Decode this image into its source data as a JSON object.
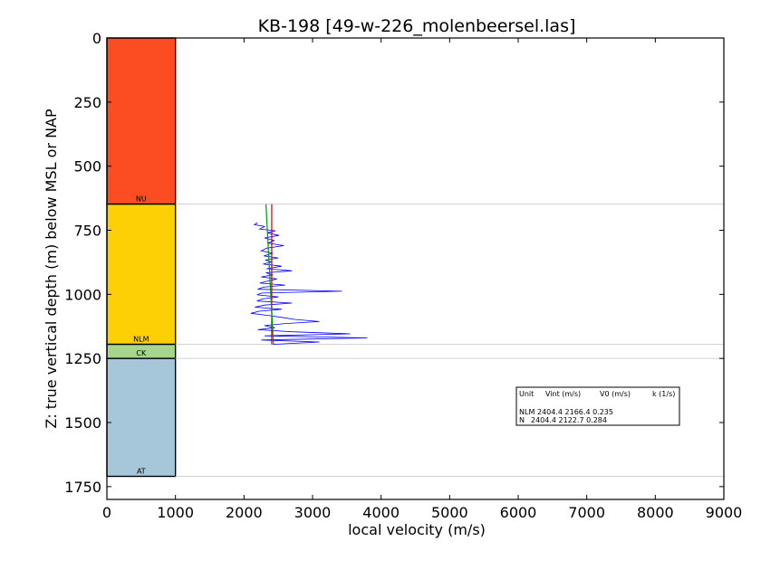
{
  "chart_data": {
    "type": "line",
    "title": "KB-198 [49-w-226_molenbeersel.las]",
    "xlabel": "local velocity (m/s)",
    "ylabel": "Z: true vertical depth (m) below MSL or NAP",
    "xlim": [
      0,
      9000
    ],
    "ylim": [
      1800,
      0
    ],
    "x_ticks": [
      0,
      1000,
      2000,
      3000,
      4000,
      5000,
      6000,
      7000,
      8000,
      9000
    ],
    "y_ticks": [
      0,
      250,
      500,
      750,
      1000,
      1250,
      1500,
      1750
    ],
    "x_tick_labels": [
      "0",
      "1000",
      "2000",
      "3000",
      "4000",
      "5000",
      "6000",
      "7000",
      "8000",
      "9000"
    ],
    "y_tick_labels": [
      "0",
      "250",
      "500",
      "750",
      "1000",
      "1250",
      "1500",
      "1750"
    ],
    "units": [
      {
        "name": "NU",
        "top": 0,
        "base": 648,
        "color": "#fc4c22"
      },
      {
        "name": "NLM",
        "top": 648,
        "base": 1195,
        "color": "#fcd004"
      },
      {
        "name": "CK",
        "top": 1195,
        "base": 1250,
        "color": "#a6d68e"
      },
      {
        "name": "AT",
        "top": 1250,
        "base": 1710,
        "color": "#a6c7da"
      }
    ],
    "unit_column_x": [
      0,
      1000
    ],
    "boundaries": [
      648,
      1195,
      1250,
      1710
    ],
    "fit_lines": [
      {
        "color": "#cc0000",
        "x": [
          2404.4,
          2404.4
        ],
        "y": [
          648,
          1195
        ]
      },
      {
        "color": "#009900",
        "x": [
          2320,
          2430
        ],
        "y": [
          648,
          1195
        ]
      }
    ],
    "series": [
      {
        "color": "#0000ff",
        "points": [
          [
            2200,
            720
          ],
          [
            2150,
            728
          ],
          [
            2300,
            735
          ],
          [
            2230,
            745
          ],
          [
            2460,
            752
          ],
          [
            2340,
            760
          ],
          [
            2510,
            770
          ],
          [
            2300,
            780
          ],
          [
            2440,
            790
          ],
          [
            2350,
            800
          ],
          [
            2580,
            810
          ],
          [
            2330,
            820
          ],
          [
            2250,
            830
          ],
          [
            2420,
            840
          ],
          [
            2290,
            850
          ],
          [
            2500,
            858
          ],
          [
            2310,
            866
          ],
          [
            2400,
            874
          ],
          [
            2280,
            882
          ],
          [
            2550,
            890
          ],
          [
            2330,
            900
          ],
          [
            2700,
            908
          ],
          [
            2320,
            916
          ],
          [
            2420,
            924
          ],
          [
            2250,
            932
          ],
          [
            2480,
            940
          ],
          [
            2350,
            948
          ],
          [
            2230,
            956
          ],
          [
            2600,
            964
          ],
          [
            2280,
            972
          ],
          [
            2200,
            980
          ],
          [
            3430,
            988
          ],
          [
            2260,
            995
          ],
          [
            2190,
            1002
          ],
          [
            2500,
            1010
          ],
          [
            2270,
            1018
          ],
          [
            2190,
            1026
          ],
          [
            2700,
            1034
          ],
          [
            2300,
            1042
          ],
          [
            2160,
            1050
          ],
          [
            2550,
            1058
          ],
          [
            2220,
            1066
          ],
          [
            2100,
            1074
          ],
          [
            2350,
            1082
          ],
          [
            2550,
            1090
          ],
          [
            2750,
            1098
          ],
          [
            3100,
            1106
          ],
          [
            2600,
            1114
          ],
          [
            2300,
            1122
          ],
          [
            2450,
            1130
          ],
          [
            2200,
            1138
          ],
          [
            2700,
            1146
          ],
          [
            3550,
            1154
          ],
          [
            2300,
            1162
          ],
          [
            3800,
            1170
          ],
          [
            2250,
            1178
          ],
          [
            3100,
            1186
          ],
          [
            2420,
            1195
          ]
        ]
      }
    ],
    "legend_table": {
      "header": [
        "Unit",
        "Vint (m/s)",
        "V0 (m/s)",
        "k (1/s)"
      ],
      "rows": [
        {
          "unit": "NLM",
          "values": "2404.4  2166.4  0.235"
        },
        {
          "unit": "N",
          "values": "2404.4  2122.7  0.284"
        }
      ]
    }
  }
}
